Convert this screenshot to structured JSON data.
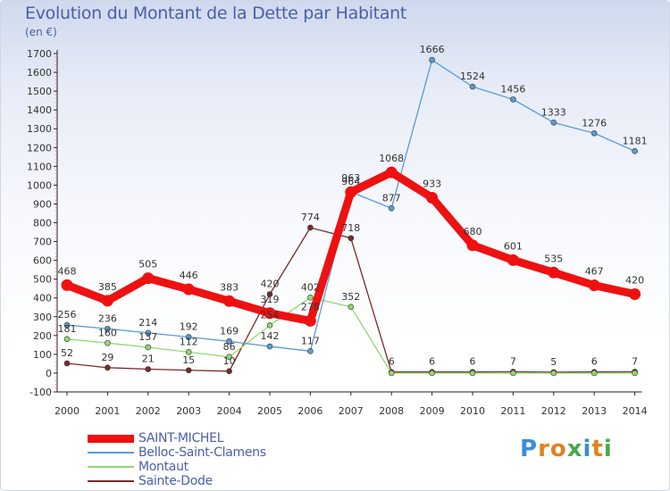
{
  "title": "Evolution du Montant de la Dette par Habitant",
  "unit_label": "(en €)",
  "brand": {
    "name": "Proxiti",
    "letters": [
      {
        "ch": "P",
        "color": "#3a8fd6"
      },
      {
        "ch": "r",
        "color": "#e0821f"
      },
      {
        "ch": "o",
        "color": "#e0821f"
      },
      {
        "ch": "x",
        "color": "#4aa84a"
      },
      {
        "ch": "i",
        "color": "#3a8fd6"
      },
      {
        "ch": "t",
        "color": "#e0821f"
      },
      {
        "ch": "i",
        "color": "#4aa84a"
      }
    ]
  },
  "chart_data": {
    "type": "line",
    "title": "Evolution du Montant de la Dette par Habitant",
    "ylabel": "(en €)",
    "xlabel": "",
    "ylim": [
      -100,
      1700
    ],
    "y_ticks": [
      -100,
      0,
      100,
      200,
      300,
      400,
      500,
      600,
      700,
      800,
      900,
      1000,
      1100,
      1200,
      1300,
      1400,
      1500,
      1600,
      1700
    ],
    "x": [
      "2000",
      "2001",
      "2002",
      "2003",
      "2004",
      "2005",
      "2006",
      "2007",
      "2008",
      "2009",
      "2010",
      "2011",
      "2012",
      "2013",
      "2014"
    ],
    "grid": false,
    "legend_position": "bottom-left",
    "series": [
      {
        "name": "SAINT-MICHEL",
        "color": "#ee1111",
        "values": [
          468,
          385,
          505,
          446,
          383,
          319,
          278,
          963,
          1068,
          933,
          680,
          601,
          535,
          467,
          420
        ],
        "labels": [
          "468",
          "385",
          "505",
          "446",
          "383",
          "319",
          "278",
          "963",
          "1068",
          "933",
          "680",
          "601",
          "535",
          "467",
          "420"
        ]
      },
      {
        "name": "Belloc-Saint-Clamens",
        "color": "#5b9bd5",
        "values": [
          256,
          236,
          214,
          192,
          169,
          142,
          117,
          964,
          877,
          1666,
          1524,
          1456,
          1333,
          1276,
          1181
        ],
        "labels": [
          "256",
          "236",
          "214",
          "192",
          "169",
          "142",
          "117",
          "964",
          "877",
          "1666",
          "1524",
          "1456",
          "1333",
          "1276",
          "1181"
        ]
      },
      {
        "name": "Montaut",
        "color": "#90d870",
        "values": [
          181,
          160,
          137,
          112,
          86,
          254,
          402,
          352,
          0,
          0,
          0,
          0,
          0,
          0,
          0
        ],
        "labels": [
          "181",
          "160",
          "137",
          "112",
          "86",
          "254",
          "402",
          "352",
          "",
          "",
          "",
          "",
          "",
          "",
          ""
        ]
      },
      {
        "name": "Sainte-Dode",
        "color": "#7a2a2a",
        "values": [
          52,
          29,
          21,
          15,
          10,
          420,
          774,
          718,
          6,
          6,
          6,
          7,
          5,
          6,
          7
        ],
        "labels": [
          "52",
          "29",
          "21",
          "15",
          "10",
          "420",
          "774",
          "718",
          "6",
          "6",
          "6",
          "7",
          "5",
          "6",
          "7"
        ]
      }
    ]
  }
}
